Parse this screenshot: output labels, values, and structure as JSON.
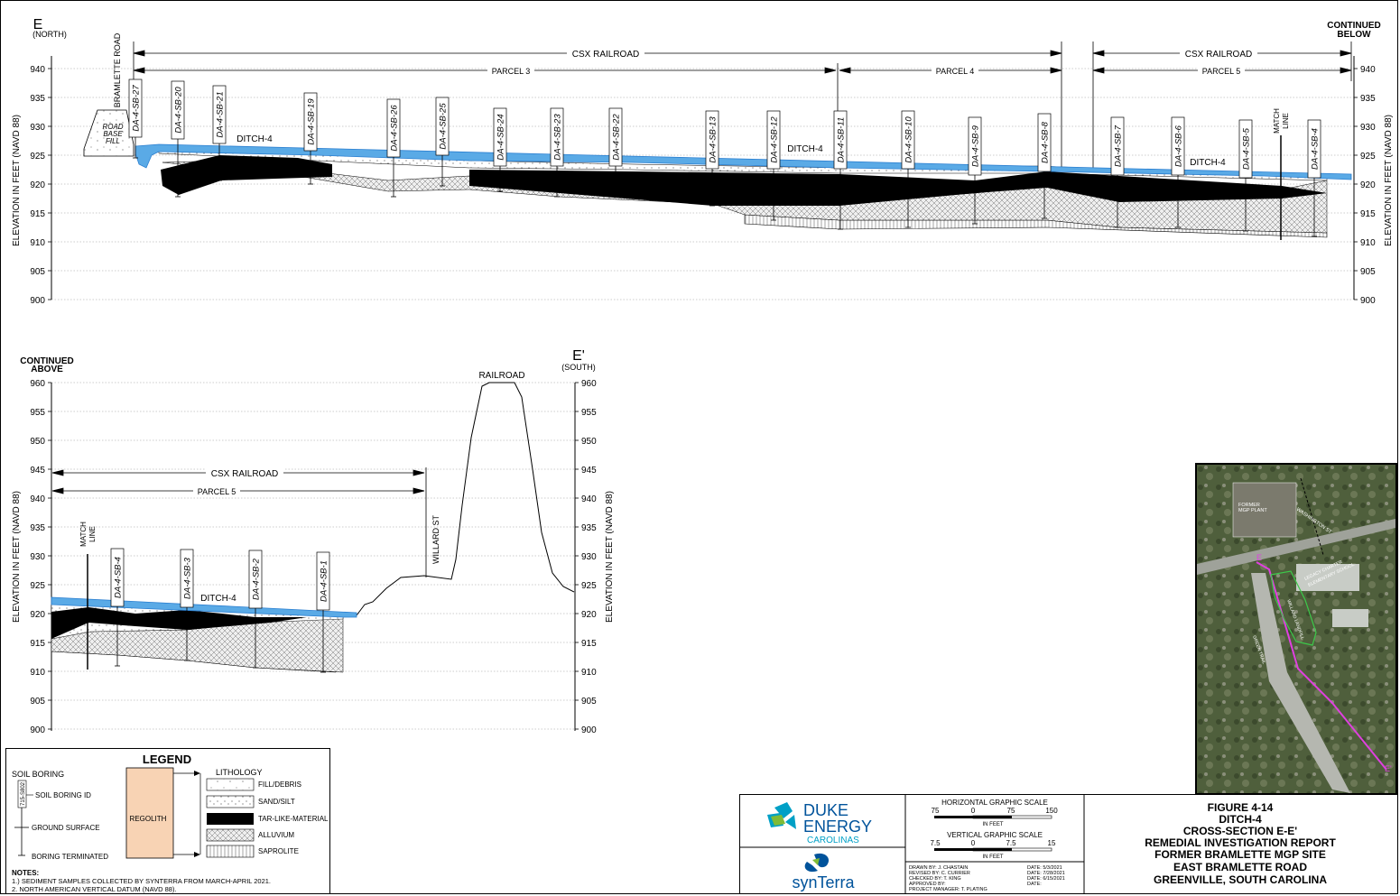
{
  "top_section": {
    "left_letter": "E",
    "left_sub": "(NORTH)",
    "continued_label": "CONTINUED",
    "continued_sub": "BELOW",
    "y_axis_label": "ELEVATION IN FEET (NAVD 88)",
    "y_ticks": [
      "940",
      "935",
      "930",
      "925",
      "920",
      "915",
      "910",
      "905",
      "900"
    ],
    "road_label": "BRAMLETTE ROAD",
    "fill_label": [
      "ROAD",
      "BASE",
      "FILL"
    ],
    "csx_label_1": "CSX RAILROAD",
    "csx_label_2": "CSX RAILROAD",
    "parcel_3": "PARCEL 3",
    "parcel_4": "PARCEL 4",
    "parcel_5": "PARCEL 5",
    "ditch_label_1": "DITCH-4",
    "ditch_label_2": "DITCH-4",
    "ditch_label_3": "DITCH-4",
    "match_line": [
      "MATCH",
      "LINE"
    ],
    "borings": [
      "DA-4-SB-27",
      "DA-4-SB-20",
      "DA-4-SB-21",
      "DA-4-SB-19",
      "DA-4-SB-26",
      "DA-4-SB-25",
      "DA-4-SB-24",
      "DA-4-SB-23",
      "DA-4-SB-22",
      "DA-4-SB-13",
      "DA-4-SB-12",
      "DA-4-SB-11",
      "DA-4-SB-10",
      "DA-4-SB-9",
      "DA-4-SB-8",
      "DA-4-SB-7",
      "DA-4-SB-6",
      "DA-4-SB-5",
      "DA-4-SB-4"
    ]
  },
  "bottom_section": {
    "continued_label": "CONTINUED",
    "continued_sub": "ABOVE",
    "right_letter": "E'",
    "right_sub": "(SOUTH)",
    "railroad_label": "RAILROAD",
    "willard_label": "WILLARD ST",
    "csx_label": "CSX RAILROAD",
    "parcel_label": "PARCEL 5",
    "ditch_label": "DITCH-4",
    "match_line": [
      "MATCH",
      "LINE"
    ],
    "y_axis_label": "ELEVATION IN FEET (NAVD 88)",
    "y_ticks": [
      "960",
      "955",
      "950",
      "945",
      "940",
      "935",
      "930",
      "925",
      "920",
      "915",
      "910",
      "905",
      "900"
    ],
    "borings": [
      "DA-4-SB-4",
      "DA-4-SB-3",
      "DA-4-SB-2",
      "DA-4-SB-1"
    ]
  },
  "legend": {
    "title": "LEGEND",
    "soil_boring": "SOIL BORING",
    "soil_boring_id_sample": "715-S802",
    "soil_boring_id": "SOIL BORING ID",
    "ground_surface": "GROUND SURFACE",
    "boring_terminated": "BORING TERMINATED",
    "regolith": "REGOLITH",
    "lithology": "LITHOLOGY",
    "items": [
      "FILL/DEBRIS",
      "SAND/SILT",
      "TAR-LIKE-MATERIAL",
      "ALLUVIUM",
      "SAPROLITE"
    ],
    "notes_title": "NOTES:",
    "notes": [
      "1.) SEDIMENT SAMPLES COLLECTED BY SYNTERRA FROM MARCH-APRIL 2021.",
      "2. NORTH AMERICAN VERTICAL DATUM (NAVD 88)."
    ]
  },
  "title_block": {
    "company_1": "DUKE",
    "company_2": "ENERGY",
    "company_3": "CAROLINAS",
    "consultant": "synTerra",
    "h_scale_title": "HORIZONTAL GRAPHIC SCALE",
    "h_scale_ticks": [
      "75",
      "0",
      "75",
      "150"
    ],
    "h_scale_unit": "IN FEET",
    "v_scale_title": "VERTICAL GRAPHIC SCALE",
    "v_scale_ticks": [
      "7.5",
      "0",
      "7.5",
      "15"
    ],
    "v_scale_unit": "IN FEET",
    "drawn_by": "DRAWN BY: J. CHASTAIN",
    "revised_by": "REVISED BY: C. CURRIER",
    "checked_by": "CHECKED BY: T. KING",
    "approved_by": "APPROVED BY:",
    "project_manager": "PROJECT MANAGER: T. PLATING",
    "date_1": "DATE: 5/3/2021",
    "date_2": "DATE: 7/28/2021",
    "date_3": "DATE: 6/15/2021",
    "date_4": "DATE:",
    "figure_lines": [
      "FIGURE 4-14",
      "DITCH-4",
      "CROSS-SECTION E-E'",
      "REMEDIAL INVESTIGATION REPORT",
      "FORMER BRAMLETTE MGP SITE",
      "EAST BRAMLETTE ROAD",
      "GREENVILLE, SOUTH CAROLINA"
    ]
  },
  "map_inset": {
    "label_plant": [
      "FORMER",
      "MGP PLANT"
    ],
    "label_school": [
      "LEGACY CHARTER",
      "ELEMENTARY SCHOOL"
    ],
    "label_street": "WASHINGTON ST",
    "label_landfill": "WILLARD LANDFILL",
    "label_trail": "GREEN TRAIL",
    "label_e": "E",
    "label_e_prime": "E'"
  },
  "colors": {
    "water": "#5aaae6",
    "water_edge": "#2b7fd0",
    "tar": "#000000",
    "regolith": "#f8d3b4",
    "grid": "#9a9a9a"
  }
}
